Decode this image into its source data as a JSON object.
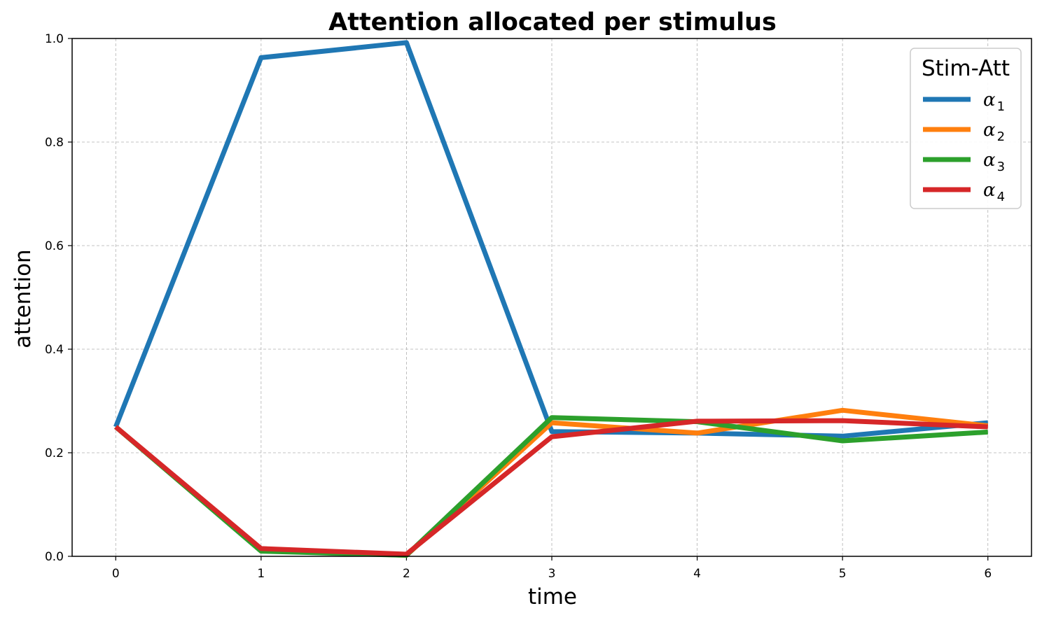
{
  "chart_data": {
    "type": "line",
    "title": "Attention allocated per stimulus",
    "xlabel": "time",
    "ylabel": "attention",
    "x": [
      0,
      1,
      2,
      3,
      4,
      5,
      6
    ],
    "xlim": [
      -0.3,
      6.3
    ],
    "ylim": [
      0.0,
      1.0
    ],
    "xticks": [
      "0",
      "1",
      "2",
      "3",
      "4",
      "5",
      "6"
    ],
    "yticks": [
      "0.0",
      "0.2",
      "0.4",
      "0.6",
      "0.8",
      "1.0"
    ],
    "grid": true,
    "legend": {
      "title": "Stim-Att",
      "position": "top-right"
    },
    "series": [
      {
        "name": "α1",
        "base": "α",
        "sub": "1",
        "color": "#1f77b4",
        "values": [
          0.25,
          0.963,
          0.992,
          0.241,
          0.238,
          0.232,
          0.258
        ]
      },
      {
        "name": "α2",
        "base": "α",
        "sub": "2",
        "color": "#ff7f0e",
        "values": [
          0.25,
          0.012,
          0.002,
          0.258,
          0.238,
          0.282,
          0.252
        ]
      },
      {
        "name": "α3",
        "base": "α",
        "sub": "3",
        "color": "#2ca02c",
        "values": [
          0.25,
          0.01,
          0.002,
          0.268,
          0.26,
          0.223,
          0.24
        ]
      },
      {
        "name": "α4",
        "base": "α",
        "sub": "4",
        "color": "#d62728",
        "values": [
          0.25,
          0.015,
          0.004,
          0.231,
          0.261,
          0.262,
          0.25
        ]
      }
    ]
  }
}
